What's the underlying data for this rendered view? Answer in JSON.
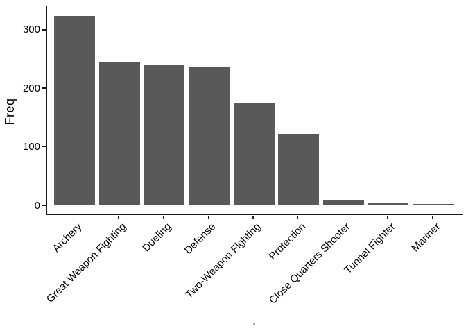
{
  "chart_data": {
    "type": "bar",
    "title": "",
    "xlabel": ".",
    "ylabel": "Freq",
    "categories": [
      "Archery",
      "Great Weapon Fighting",
      "Dueling",
      "Defense",
      "Two-Weapon Fighting",
      "Protection",
      "Close Quarters Shooter",
      "Tunnel Fighter",
      "Mariner"
    ],
    "values": [
      324,
      244,
      241,
      236,
      175,
      122,
      8,
      4,
      2
    ],
    "yticks": [
      0,
      100,
      200,
      300
    ],
    "ylim": [
      0,
      340
    ],
    "x_tick_label_rotation_deg": 45,
    "grid": false,
    "legend_position": "none",
    "bar_color": "#595959",
    "axis_color": "#1a1a1a",
    "text_color": "#000000",
    "background_color": "#ffffff"
  }
}
